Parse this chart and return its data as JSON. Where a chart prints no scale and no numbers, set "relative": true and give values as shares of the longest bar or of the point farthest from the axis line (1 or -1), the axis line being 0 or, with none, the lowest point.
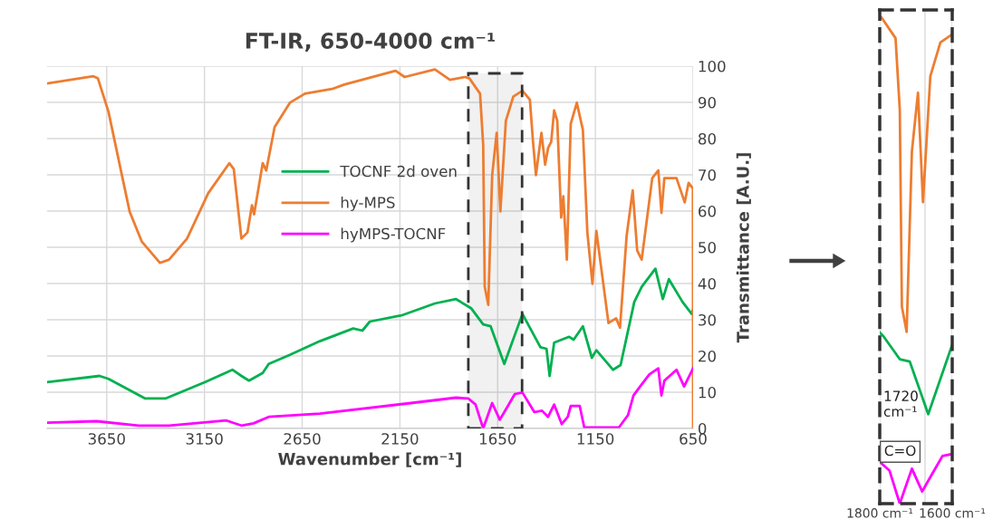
{
  "chart_data": [
    {
      "type": "line",
      "title": "FT-IR, 650-4000 cm⁻¹",
      "xlabel": "Wavenumber [cm⁻¹]",
      "ylabel": "Transmittance [A.U.]",
      "xlim": [
        3955,
        650
      ],
      "xticks": [
        3650,
        3150,
        2650,
        2150,
        1650,
        1150,
        650
      ],
      "ylim": [
        0,
        100
      ],
      "yticks": [
        0,
        10,
        20,
        30,
        40,
        50,
        60,
        70,
        80,
        90,
        100
      ],
      "grid": true,
      "legend": "center",
      "bands": [
        {
          "axis": "x",
          "from": 1800,
          "to": 1525,
          "color": "#333333"
        }
      ],
      "series": [
        {
          "name": "TOCNF 2d oven",
          "color": "#00b050",
          "x": [
            3955,
            3687,
            3641,
            3455,
            3347,
            3146,
            3007,
            2961,
            2922,
            2852,
            2821,
            2713,
            2559,
            2389,
            2342,
            2304,
            2142,
            1971,
            1863,
            1786,
            1724,
            1686,
            1616,
            1523,
            1431,
            1400,
            1384,
            1361,
            1284,
            1261,
            1214,
            1168,
            1145,
            1060,
            1021,
            951,
            913,
            843,
            805,
            774,
            704,
            657,
            650
          ],
          "values": [
            12.8,
            14.5,
            13.7,
            8.3,
            8.3,
            12.8,
            16.2,
            14.5,
            13.2,
            15.3,
            17.8,
            20.3,
            24.1,
            27.6,
            27,
            29.5,
            31.2,
            34.5,
            35.7,
            33.2,
            28.7,
            28.2,
            17.8,
            31.6,
            22.4,
            22,
            14.5,
            23.7,
            25.3,
            24.5,
            28.2,
            19.5,
            21.6,
            16.2,
            17.5,
            34.9,
            39.1,
            44.1,
            35.7,
            41.2,
            34.9,
            31.6,
            32.8
          ]
        },
        {
          "name": "hy-MPS",
          "color": "#ed7d31",
          "x": [
            3955,
            3718,
            3695,
            3641,
            3579,
            3533,
            3471,
            3378,
            3331,
            3239,
            3131,
            3023,
            3000,
            2961,
            2930,
            2907,
            2896,
            2852,
            2834,
            2791,
            2713,
            2636,
            2497,
            2435,
            2172,
            2126,
            1971,
            1894,
            1817,
            1794,
            1740,
            1724,
            1716,
            1698,
            1678,
            1655,
            1636,
            1608,
            1570,
            1523,
            1485,
            1469,
            1454,
            1426,
            1407,
            1392,
            1376,
            1361,
            1345,
            1325,
            1314,
            1296,
            1276,
            1245,
            1214,
            1191,
            1165,
            1145,
            1083,
            1044,
            1024,
            990,
            959,
            936,
            913,
            859,
            828,
            812,
            797,
            735,
            693,
            673,
            651,
            650
          ],
          "values": [
            95.2,
            97.2,
            96.6,
            87.4,
            71.6,
            59.9,
            51.6,
            45.7,
            46.6,
            52.4,
            64.9,
            73.2,
            71.6,
            52.4,
            54.1,
            61.6,
            59.1,
            73.2,
            71.2,
            83.2,
            89.9,
            92.4,
            93.7,
            94.9,
            98.7,
            97,
            99.1,
            96.2,
            97,
            96.6,
            92.4,
            78.2,
            39.1,
            34.1,
            69.9,
            81.6,
            59.9,
            84.9,
            91.6,
            93.2,
            90.7,
            79.1,
            69.9,
            81.6,
            72.8,
            77.4,
            79.1,
            87.8,
            84.9,
            58.2,
            64.1,
            46.6,
            84.1,
            89.9,
            82.4,
            54.1,
            39.9,
            54.5,
            29.1,
            30.4,
            27.8,
            53.2,
            65.7,
            49.1,
            46.6,
            69.1,
            71.2,
            59.5,
            69.1,
            69.1,
            62.4,
            67.8,
            66.2,
            0
          ]
        },
        {
          "name": "hyMPS-TOCNF",
          "color": "#ff00ff",
          "x": [
            3955,
            3702,
            3486,
            3331,
            3038,
            2961,
            2899,
            2821,
            2559,
            2095,
            1863,
            1801,
            1763,
            1724,
            1678,
            1639,
            1616,
            1562,
            1523,
            1462,
            1423,
            1392,
            1361,
            1322,
            1291,
            1276,
            1230,
            1207,
            1029,
            983,
            955,
            921,
            874,
            828,
            812,
            797,
            735,
            696,
            650
          ],
          "values": [
            1.6,
            2,
            0.8,
            0.8,
            2.2,
            0.8,
            1.4,
            3.2,
            4.1,
            7,
            8.5,
            8.3,
            6.6,
            0,
            7,
            2.4,
            4.5,
            9.5,
            9.9,
            4.5,
            4.9,
            3.2,
            6.6,
            1.2,
            3.2,
            6.2,
            6.2,
            0.3,
            0.3,
            3.7,
            9.1,
            11.6,
            14.9,
            16.6,
            9.1,
            13.2,
            16.2,
            11.6,
            16.6
          ]
        }
      ]
    },
    {
      "type": "line",
      "relative": true,
      "xlim": [
        1800,
        1600
      ],
      "xticks": [
        {
          "value": 1800,
          "label": "1800 cm⁻¹"
        },
        {
          "value": 1675,
          "label": null
        },
        {
          "value": 1600,
          "label": "1600 cm⁻¹"
        }
      ],
      "grid": "x",
      "tick_labels": "x",
      "annotations": [
        "1720\ncm⁻¹",
        "C=O"
      ],
      "series": [
        {
          "color": "#ed7d31",
          "x": [
            1800,
            1795.6,
            1756.4,
            1744.7,
            1738.9,
            1725.8,
            1711.3,
            1694.5,
            1680.7,
            1660.4,
            1632.7,
            1600
          ],
          "values": [
            1,
            1,
            0.957,
            0.81,
            0.405,
            0.353,
            0.724,
            0.845,
            0.62,
            0.879,
            0.948,
            0.965
          ]
        },
        {
          "color": "#00b050",
          "x": [
            1800,
            1789.8,
            1744.7,
            1717.1,
            1666.2,
            1600
          ],
          "values": [
            0.352,
            0.344,
            0.297,
            0.292,
            0.184,
            0.327
          ]
        },
        {
          "color": "#ff00ff",
          "x": [
            1800,
            1773.1,
            1744.7,
            1711.3,
            1682.9,
            1666.2,
            1626.9,
            1600
          ],
          "values": [
            0.086,
            0.068,
            0,
            0.072,
            0.025,
            0.047,
            0.098,
            0.102
          ]
        }
      ]
    }
  ]
}
